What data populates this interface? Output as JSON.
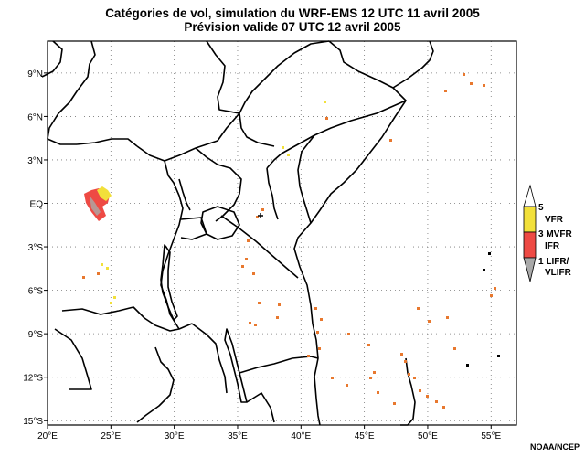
{
  "title": {
    "line1": "Catégories de vol, simulation du WRF-EMS 12 UTC 11 avril 2005",
    "line2": "Prévision valide 07 UTC 12 avril 2005"
  },
  "axes": {
    "lon_min": 20,
    "lon_max": 57,
    "lat_min": -15.3,
    "lat_max": 11.2,
    "lon_ticks": [
      {
        "value": 20,
        "label": "20°E"
      },
      {
        "value": 25,
        "label": "25°E"
      },
      {
        "value": 30,
        "label": "30°E"
      },
      {
        "value": 35,
        "label": "35°E"
      },
      {
        "value": 40,
        "label": "40°E"
      },
      {
        "value": 45,
        "label": "45°E"
      },
      {
        "value": 50,
        "label": "50°E"
      },
      {
        "value": 55,
        "label": "55°E"
      }
    ],
    "lat_ticks": [
      {
        "value": 9,
        "label": "9°N"
      },
      {
        "value": 6,
        "label": "6°N"
      },
      {
        "value": 3,
        "label": "3°N"
      },
      {
        "value": 0,
        "label": "EQ"
      },
      {
        "value": -3,
        "label": "3°S"
      },
      {
        "value": -6,
        "label": "6°S"
      },
      {
        "value": -9,
        "label": "9°S"
      },
      {
        "value": -12,
        "label": "12°S"
      },
      {
        "value": -15,
        "label": "15°S"
      }
    ],
    "grid": "dotted"
  },
  "legend": {
    "levels": [
      {
        "value": "5",
        "label": "VFR",
        "color": "#f2e03a"
      },
      {
        "value": "3",
        "label": "MVFR",
        "color": "#f2e03a"
      },
      {
        "value": "",
        "label": "IFR",
        "color": "#ee4a44"
      },
      {
        "value": "1",
        "label": "LIFR/",
        "color": "#a9a9a9"
      },
      {
        "value": "",
        "label": "VLIFR",
        "color": "#a9a9a9"
      }
    ]
  },
  "colors": {
    "vfr": "#f2e03a",
    "ifr": "#ee4a44",
    "orange": "#e8782e",
    "lifr": "#a9a9a9"
  },
  "credit": "NOAA/NCEP"
}
